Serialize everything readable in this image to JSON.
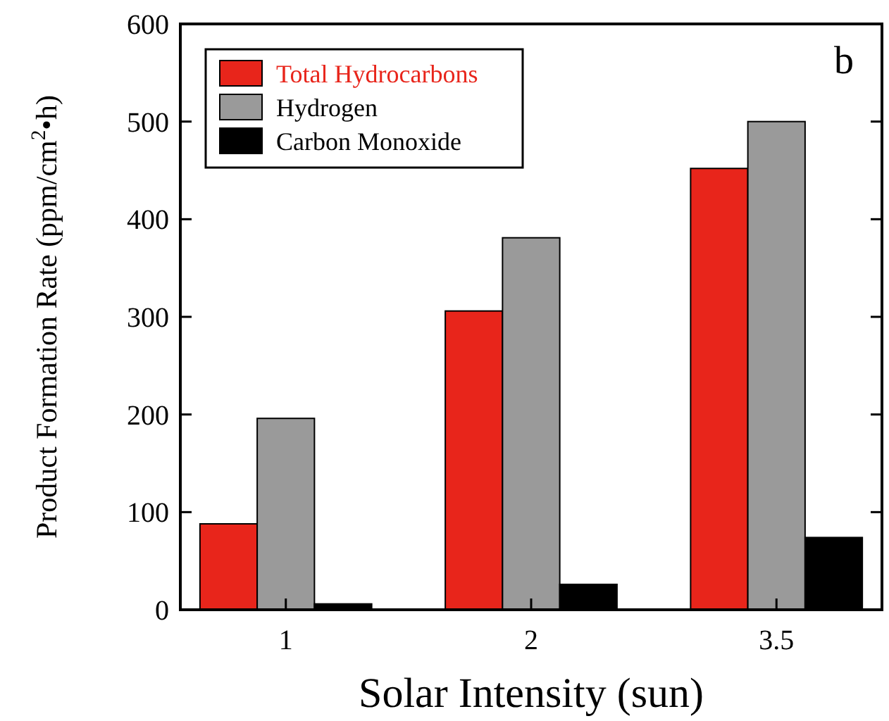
{
  "chart_data": {
    "type": "bar",
    "xlabel": "Solar Intensity (sun)",
    "ylabel": "Product Formation Rate (ppm/cm$^{2}$•h)",
    "categories": [
      "1",
      "2",
      "3.5"
    ],
    "series": [
      {
        "name": "Total Hydrocarbons",
        "color": "#e8251b",
        "values": [
          88,
          306,
          452
        ]
      },
      {
        "name": "Hydrogen",
        "color": "#9a9a9a",
        "values": [
          196,
          381,
          500
        ]
      },
      {
        "name": "Carbon Monoxide",
        "color": "#000000",
        "values": [
          6,
          26,
          74
        ]
      }
    ],
    "ylim": [
      0,
      600
    ],
    "yticks": [
      0,
      100,
      200,
      300,
      400,
      500,
      600
    ],
    "legend": "top left",
    "annotations": [
      "b"
    ]
  }
}
